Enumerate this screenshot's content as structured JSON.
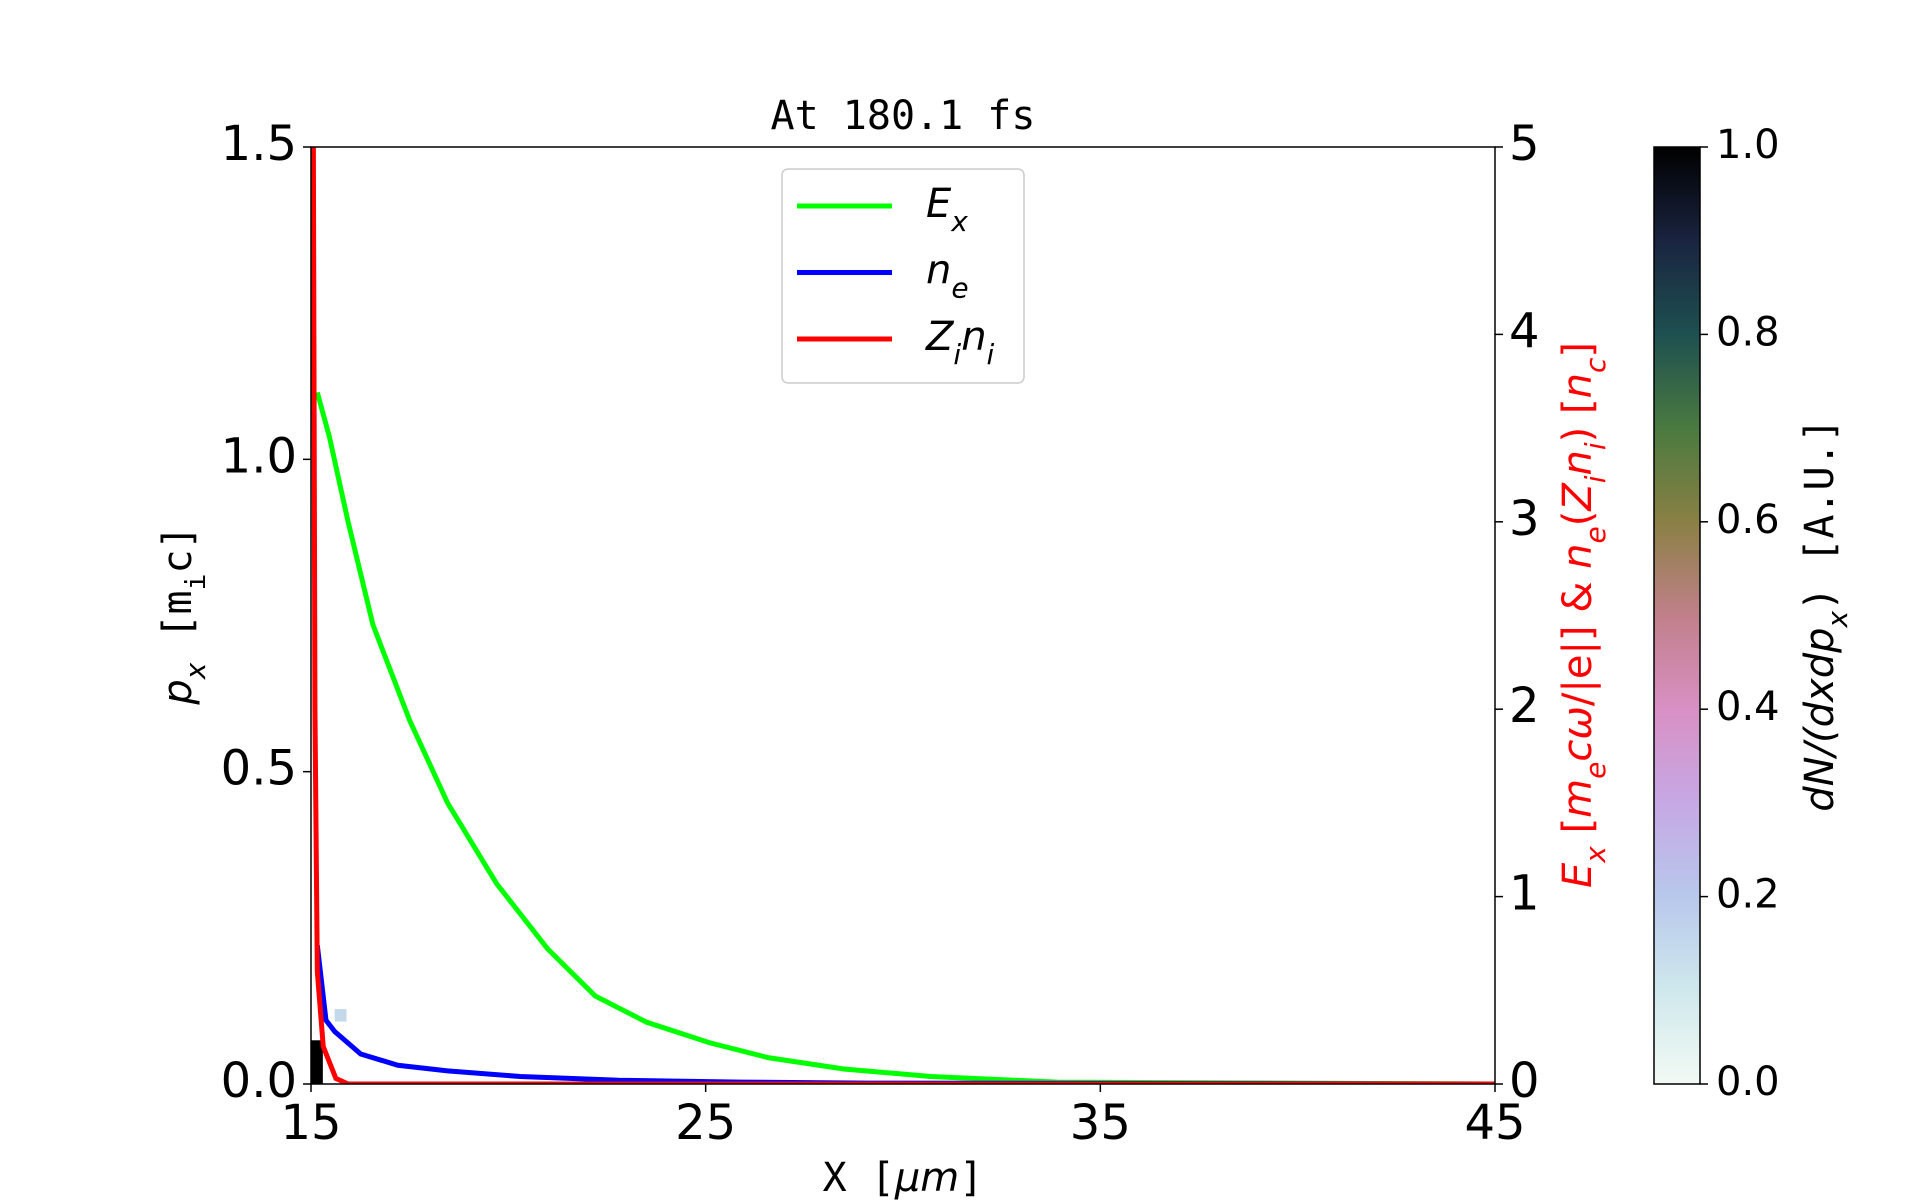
{
  "chart_data": {
    "type": "line",
    "title": [
      [
        "At 180.1 fs",
        "m"
      ]
    ],
    "xlabel": [
      [
        "X [",
        "m"
      ],
      [
        "μm",
        "i"
      ],
      [
        "]",
        "m"
      ]
    ],
    "ylabel": [
      [
        "p",
        "i"
      ],
      [
        "x",
        "is"
      ],
      [
        " [m",
        "m"
      ],
      [
        "i",
        "ms"
      ],
      [
        "c]",
        "m"
      ]
    ],
    "y2label": [
      [
        "E",
        "i"
      ],
      [
        "x",
        "is"
      ],
      [
        " [",
        "n"
      ],
      [
        "m",
        "i"
      ],
      [
        "e",
        "is"
      ],
      [
        "cω",
        "i"
      ],
      [
        "/|e|]  &  ",
        "n"
      ],
      [
        "n",
        "i"
      ],
      [
        "e",
        "is"
      ],
      [
        "(",
        "n"
      ],
      [
        "Z",
        "i"
      ],
      [
        "i",
        "is"
      ],
      [
        "n",
        "i"
      ],
      [
        "i",
        "is"
      ],
      [
        ") [",
        "n"
      ],
      [
        "n",
        "i"
      ],
      [
        "c",
        "is"
      ],
      [
        "]",
        "n"
      ]
    ],
    "colorbar_label": [
      [
        "dN/(dxdp",
        "i"
      ],
      [
        "x",
        "is"
      ],
      [
        ")  [A.U.]",
        "m"
      ]
    ],
    "xlim": [
      15,
      45
    ],
    "xticks": [
      15,
      25,
      35,
      45
    ],
    "ylim": [
      0,
      1.5
    ],
    "yticks": [
      {
        "value": 0,
        "label": "0.0"
      },
      0.5,
      {
        "value": 1,
        "label": "1.0"
      },
      1.5
    ],
    "y2lim": [
      0,
      5
    ],
    "y2ticks": [
      0,
      1,
      2,
      3,
      4,
      5
    ],
    "y2color": "#ff0000",
    "series": [
      {
        "name": [
          [
            "E",
            "i"
          ],
          [
            "x",
            "is"
          ]
        ],
        "color": "#00ff00",
        "axis": "y2",
        "x": [
          15.16,
          15.47,
          15.94,
          16.57,
          17.5,
          18.46,
          19.7,
          21.0,
          22.2,
          23.5,
          25.1,
          26.6,
          28.5,
          30.7,
          33.9,
          45
        ],
        "values": [
          3.69,
          3.45,
          3.0,
          2.45,
          1.94,
          1.5,
          1.07,
          0.72,
          0.47,
          0.33,
          0.22,
          0.14,
          0.08,
          0.04,
          0.01,
          0
        ]
      },
      {
        "name": [
          [
            "n",
            "i"
          ],
          [
            "e",
            "is"
          ]
        ],
        "color": "#0000ff",
        "axis": "y2",
        "x": [
          15.16,
          15.38,
          15.6,
          16.26,
          17.2,
          18.46,
          20.3,
          22.8,
          25.9,
          29.1,
          45
        ],
        "values": [
          0.74,
          0.34,
          0.28,
          0.16,
          0.1,
          0.07,
          0.04,
          0.02,
          0.01,
          0.005,
          0
        ]
      },
      {
        "name": [
          [
            "Z",
            "i"
          ],
          [
            "i",
            "is"
          ],
          [
            "n",
            "i"
          ],
          [
            "i",
            "is"
          ]
        ],
        "color": "#ff0000",
        "axis": "y2",
        "x": [
          15.06,
          15.1,
          15.16,
          15.31,
          15.63,
          15.94,
          45
        ],
        "values": [
          5.0,
          2.0,
          0.6,
          0.2,
          0.03,
          0,
          0
        ]
      }
    ],
    "density_cells": [
      {
        "x0": 15.0,
        "x1": 15.3,
        "y0": 0,
        "y1": 0.07,
        "value": 1.0
      },
      {
        "x0": 15.6,
        "x1": 15.9,
        "y0": 0.1,
        "y1": 0.12,
        "value": 0.15
      }
    ],
    "colorbar_lim": [
      0,
      1
    ],
    "colorbar_ticks": [
      {
        "value": 0,
        "label": "0.0"
      },
      0.2,
      0.4,
      0.6,
      0.8,
      {
        "value": 1,
        "label": "1.0"
      }
    ],
    "colormap": [
      "#f2faf4",
      "#cfe8ec",
      "#b8c8ec",
      "#c6a8e4",
      "#d890c4",
      "#c0808a",
      "#8a8044",
      "#4a7a40",
      "#1e5050",
      "#1a2440",
      "#000000"
    ]
  }
}
